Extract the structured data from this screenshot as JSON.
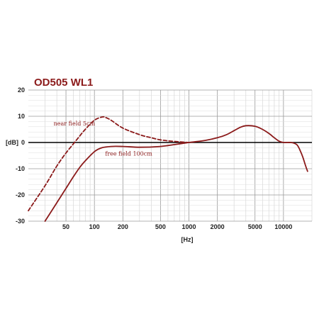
{
  "chart_data": {
    "type": "line",
    "title": "OD505 WL1",
    "xlabel": "[Hz]",
    "ylabel": "[dB]",
    "x_scale": "log",
    "xlim": [
      20,
      20000
    ],
    "ylim": [
      -30,
      20
    ],
    "x_ticks": [
      {
        "value": 50,
        "label": "50"
      },
      {
        "value": 100,
        "label": "100"
      },
      {
        "value": 200,
        "label": "200"
      },
      {
        "value": 500,
        "label": "500"
      },
      {
        "value": 1000,
        "label": "1000"
      },
      {
        "value": 2000,
        "label": "2000"
      },
      {
        "value": 5000,
        "label": "5000"
      },
      {
        "value": 10000,
        "label": "10000"
      }
    ],
    "y_ticks": [
      20,
      10,
      0,
      -10,
      -20,
      -30
    ],
    "grid": true,
    "colors": {
      "series": "#8b1a1a",
      "title": "#8b1a1a",
      "grid": "#bdbdbd",
      "zero_line": "#000000"
    },
    "series": [
      {
        "name": "near field 5cm",
        "style": "dashed",
        "x": [
          20,
          30,
          40,
          50,
          60,
          70,
          80,
          100,
          120,
          130,
          150,
          200,
          300,
          400,
          500,
          700,
          1000
        ],
        "y": [
          -26,
          -16.5,
          -9,
          -4,
          -0.5,
          2.5,
          5,
          8.5,
          9.7,
          9.6,
          8.5,
          5.5,
          3,
          1.8,
          1,
          0.4,
          0
        ]
      },
      {
        "name": "free field 100cm",
        "style": "solid",
        "x": [
          30,
          40,
          50,
          60,
          70,
          80,
          100,
          120,
          150,
          200,
          300,
          500,
          700,
          1000,
          1500,
          2000,
          2500,
          3000,
          3500,
          4000,
          5000,
          6000,
          7000,
          8000,
          9000,
          10000,
          11000,
          12000,
          13000,
          14000,
          15000,
          16000,
          17000,
          18000
        ],
        "y": [
          -30,
          -23,
          -17.5,
          -13,
          -9.5,
          -7,
          -3.5,
          -2,
          -1.5,
          -1.5,
          -1.8,
          -1.5,
          -0.8,
          0,
          0.8,
          1.8,
          3,
          4.5,
          5.8,
          6.4,
          6.2,
          5,
          3.5,
          1.8,
          0.5,
          0,
          0,
          0,
          -0.3,
          -1,
          -3,
          -5.5,
          -8.5,
          -11
        ]
      }
    ],
    "annotations": [
      {
        "text": "near field 5cm",
        "x": 37,
        "y": 6.5
      },
      {
        "text": "free field 100cm",
        "x": 130,
        "y": -5
      }
    ]
  }
}
